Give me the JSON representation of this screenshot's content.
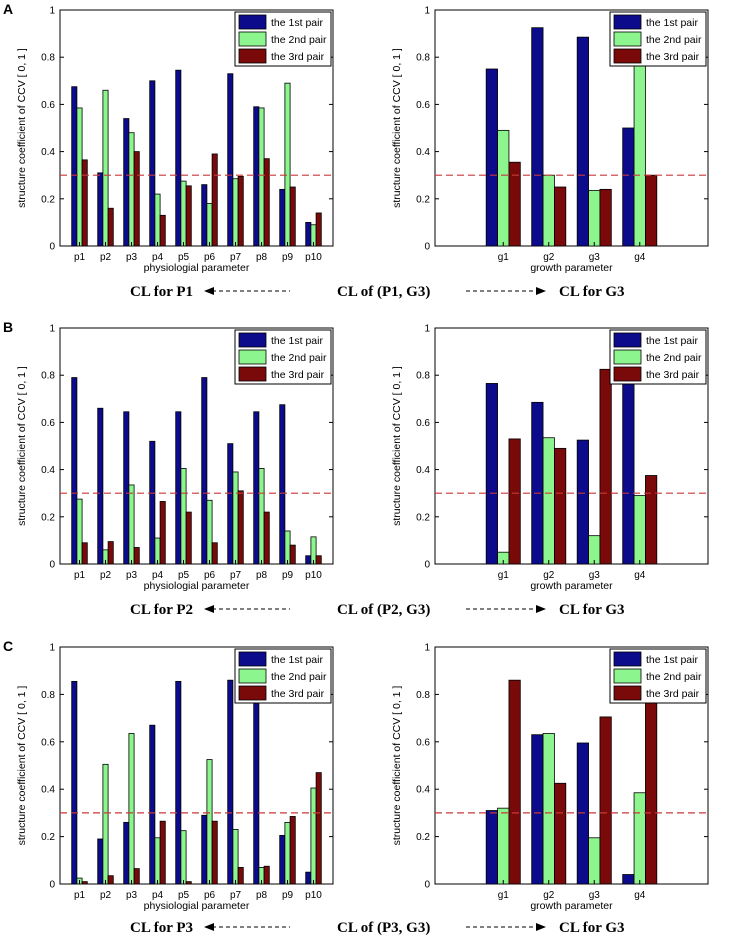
{
  "colors": {
    "first": "#0b0b8c",
    "second": "#8df58d",
    "third": "#7a0a0a",
    "threshold": "#c8393a"
  },
  "rows": [
    {
      "label": "A",
      "cl": {
        "left": "CL for P1",
        "middle": "CL of (P1, G3)",
        "right": "CL for G3"
      }
    },
    {
      "label": "B",
      "cl": {
        "left": "CL for P2",
        "middle": "CL of (P2, G3)",
        "right": "CL for G3"
      }
    },
    {
      "label": "C",
      "cl": {
        "left": "CL for P3",
        "middle": "CL of (P3, G3)",
        "right": "CL for G3"
      }
    }
  ],
  "chart_data": [
    {
      "type": "bar",
      "row": 0,
      "col": 0,
      "categories": [
        "p1",
        "p2",
        "p3",
        "p4",
        "p5",
        "p6",
        "p7",
        "p8",
        "p9",
        "p10"
      ],
      "series": [
        {
          "name": "the 1st pair",
          "values": [
            0.675,
            0.31,
            0.54,
            0.7,
            0.745,
            0.26,
            0.73,
            0.59,
            0.24,
            0.1
          ]
        },
        {
          "name": "the 2nd pair",
          "values": [
            0.585,
            0.66,
            0.48,
            0.22,
            0.275,
            0.18,
            0.285,
            0.585,
            0.69,
            0.09
          ]
        },
        {
          "name": "the 3rd pair",
          "values": [
            0.365,
            0.16,
            0.4,
            0.13,
            0.255,
            0.39,
            0.295,
            0.37,
            0.25,
            0.14
          ]
        }
      ],
      "threshold": 0.3,
      "xlabel": "physiologial parameter",
      "ylabel": "structure coefficient of CCV [ 0, 1 ]",
      "ylim": [
        0,
        1
      ],
      "yticks": [
        "0",
        "0.2",
        "0.4",
        "0.6",
        "0.8",
        "1"
      ],
      "legend": "top-right"
    },
    {
      "type": "bar",
      "row": 0,
      "col": 1,
      "categories": [
        "g1",
        "g2",
        "g3",
        "g4"
      ],
      "series": [
        {
          "name": "the 1st pair",
          "values": [
            0.75,
            0.925,
            0.885,
            0.5
          ]
        },
        {
          "name": "the 2nd pair",
          "values": [
            0.49,
            0.3,
            0.235,
            0.78
          ]
        },
        {
          "name": "the 3rd pair",
          "values": [
            0.355,
            0.25,
            0.24,
            0.3
          ]
        }
      ],
      "threshold": 0.3,
      "xlabel": "growth parameter",
      "ylabel": "structure coefficient of CCV [ 0, 1 ]",
      "ylim": [
        0,
        1
      ],
      "yticks": [
        "0",
        "0.2",
        "0.4",
        "0.6",
        "0.8",
        "1"
      ],
      "legend": "top-right"
    },
    {
      "type": "bar",
      "row": 1,
      "col": 0,
      "categories": [
        "p1",
        "p2",
        "p3",
        "p4",
        "p5",
        "p6",
        "p7",
        "p8",
        "p9",
        "p10"
      ],
      "series": [
        {
          "name": "the 1st pair",
          "values": [
            0.79,
            0.66,
            0.645,
            0.52,
            0.645,
            0.79,
            0.51,
            0.645,
            0.675,
            0.035
          ]
        },
        {
          "name": "the 2nd pair",
          "values": [
            0.275,
            0.06,
            0.335,
            0.11,
            0.405,
            0.27,
            0.39,
            0.405,
            0.14,
            0.115
          ]
        },
        {
          "name": "the 3rd pair",
          "values": [
            0.09,
            0.095,
            0.07,
            0.265,
            0.22,
            0.09,
            0.31,
            0.22,
            0.08,
            0.035
          ]
        }
      ],
      "threshold": 0.3,
      "xlabel": "physiologial parameter",
      "ylabel": "structure coefficient of CCV [ 0, 1 ]",
      "ylim": [
        0,
        1
      ],
      "yticks": [
        "0",
        "0.2",
        "0.4",
        "0.6",
        "0.8",
        "1"
      ],
      "legend": "top-right"
    },
    {
      "type": "bar",
      "row": 1,
      "col": 1,
      "categories": [
        "g1",
        "g2",
        "g3",
        "g4"
      ],
      "series": [
        {
          "name": "the 1st pair",
          "values": [
            0.765,
            0.685,
            0.525,
            0.79
          ]
        },
        {
          "name": "the 2nd pair",
          "values": [
            0.05,
            0.535,
            0.12,
            0.29
          ]
        },
        {
          "name": "the 3rd pair",
          "values": [
            0.53,
            0.49,
            0.825,
            0.375
          ]
        }
      ],
      "threshold": 0.3,
      "xlabel": "growth parameter",
      "ylabel": "structure coefficient of CCV [ 0, 1 ]",
      "ylim": [
        0,
        1
      ],
      "yticks": [
        "0",
        "0.2",
        "0.4",
        "0.6",
        "0.8",
        "1"
      ],
      "legend": "top-right"
    },
    {
      "type": "bar",
      "row": 2,
      "col": 0,
      "categories": [
        "p1",
        "p2",
        "p3",
        "p4",
        "p5",
        "p6",
        "p7",
        "p8",
        "p9",
        "p10"
      ],
      "series": [
        {
          "name": "the 1st pair",
          "values": [
            0.855,
            0.19,
            0.26,
            0.67,
            0.855,
            0.29,
            0.86,
            0.8,
            0.205,
            0.05
          ]
        },
        {
          "name": "the 2nd pair",
          "values": [
            0.025,
            0.505,
            0.635,
            0.195,
            0.225,
            0.525,
            0.23,
            0.07,
            0.26,
            0.405
          ]
        },
        {
          "name": "the 3rd pair",
          "values": [
            0.01,
            0.035,
            0.065,
            0.265,
            0.01,
            0.265,
            0.07,
            0.075,
            0.285,
            0.47
          ]
        }
      ],
      "threshold": 0.3,
      "xlabel": "physiologial parameter",
      "ylabel": "structure coefficient of CCV [ 0, 1 ]",
      "ylim": [
        0,
        1
      ],
      "yticks": [
        "0",
        "0.2",
        "0.4",
        "0.6",
        "0.8",
        "1"
      ],
      "legend": "top-right"
    },
    {
      "type": "bar",
      "row": 2,
      "col": 1,
      "categories": [
        "g1",
        "g2",
        "g3",
        "g4"
      ],
      "series": [
        {
          "name": "the 1st pair",
          "values": [
            0.31,
            0.63,
            0.595,
            0.04
          ]
        },
        {
          "name": "the 2nd pair",
          "values": [
            0.32,
            0.635,
            0.195,
            0.385
          ]
        },
        {
          "name": "the 3rd pair",
          "values": [
            0.86,
            0.425,
            0.705,
            0.78
          ]
        }
      ],
      "threshold": 0.3,
      "xlabel": "growth parameter",
      "ylabel": "structure coefficient of CCV [ 0, 1 ]",
      "ylim": [
        0,
        1
      ],
      "yticks": [
        "0",
        "0.2",
        "0.4",
        "0.6",
        "0.8",
        "1"
      ],
      "legend": "top-right"
    }
  ]
}
